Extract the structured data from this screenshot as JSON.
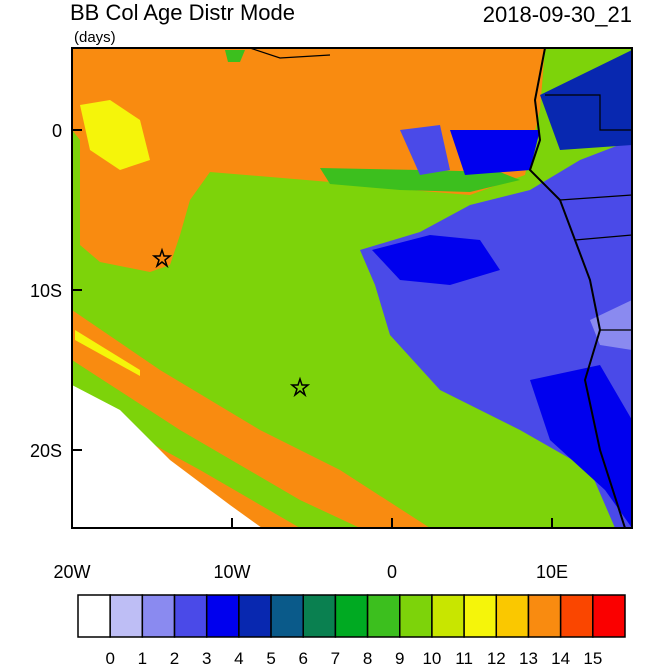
{
  "title": "BB Col Age Distr Mode",
  "units": "(days)",
  "date": "2018-09-30_21",
  "x_axis": {
    "ticks": [
      "20W",
      "10W",
      "0",
      "10E"
    ]
  },
  "y_axis": {
    "ticks": [
      "0",
      "10S",
      "20S"
    ]
  },
  "colorbar": {
    "colors": [
      "#ffffff",
      "#bebef5",
      "#8a8af0",
      "#4a4ae8",
      "#0000ee",
      "#0828b0",
      "#0a5a8a",
      "#0a8050",
      "#00aa22",
      "#3cbf1e",
      "#7dd30a",
      "#c8e600",
      "#f5f50a",
      "#fac800",
      "#f98b10",
      "#fa4600",
      "#fa0000"
    ],
    "labels": [
      "0",
      "1",
      "2",
      "3",
      "4",
      "5",
      "6",
      "7",
      "8",
      "9",
      "10",
      "11",
      "12",
      "13",
      "14",
      "15"
    ]
  }
}
